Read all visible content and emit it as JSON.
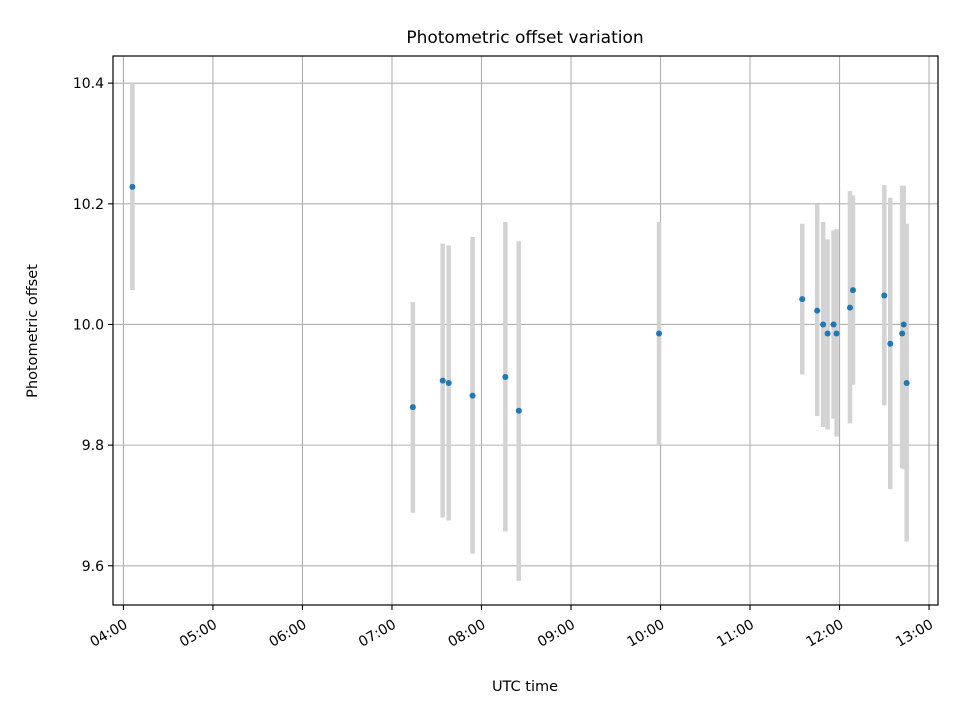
{
  "chart_data": {
    "type": "scatter",
    "title": "Photometric offset variation",
    "xlabel": "UTC time",
    "ylabel": "Photometric offset",
    "x_ticks": [
      "04:00",
      "05:00",
      "06:00",
      "07:00",
      "08:00",
      "09:00",
      "10:00",
      "11:00",
      "12:00",
      "13:00"
    ],
    "y_ticks": [
      "9.6",
      "9.8",
      "10.0",
      "10.2",
      "10.4"
    ],
    "xlim": [
      "03:53",
      "13:06"
    ],
    "ylim": [
      9.535,
      10.445
    ],
    "grid": true,
    "point_color": "#1f77b4",
    "errorbar_color": "#d3d3d3",
    "points": [
      {
        "t": "04:06",
        "y": 10.228,
        "ylow": 10.057,
        "yhigh": 10.4
      },
      {
        "t": "07:14",
        "y": 9.863,
        "ylow": 9.688,
        "yhigh": 10.037
      },
      {
        "t": "07:34",
        "y": 9.907,
        "ylow": 9.68,
        "yhigh": 10.134
      },
      {
        "t": "07:38",
        "y": 9.903,
        "ylow": 9.675,
        "yhigh": 10.131
      },
      {
        "t": "07:54",
        "y": 9.882,
        "ylow": 9.62,
        "yhigh": 10.145
      },
      {
        "t": "08:16",
        "y": 9.913,
        "ylow": 9.657,
        "yhigh": 10.17
      },
      {
        "t": "08:25",
        "y": 9.857,
        "ylow": 9.575,
        "yhigh": 10.138
      },
      {
        "t": "09:59",
        "y": 9.985,
        "ylow": 9.8,
        "yhigh": 10.17
      },
      {
        "t": "11:35",
        "y": 10.042,
        "ylow": 9.917,
        "yhigh": 10.167
      },
      {
        "t": "11:45",
        "y": 10.023,
        "ylow": 9.848,
        "yhigh": 10.199
      },
      {
        "t": "11:49",
        "y": 10.0,
        "ylow": 9.83,
        "yhigh": 10.17
      },
      {
        "t": "11:52",
        "y": 9.985,
        "ylow": 9.826,
        "yhigh": 10.141
      },
      {
        "t": "11:56",
        "y": 10.0,
        "ylow": 9.844,
        "yhigh": 10.156
      },
      {
        "t": "11:58",
        "y": 9.985,
        "ylow": 9.814,
        "yhigh": 10.158
      },
      {
        "t": "12:07",
        "y": 10.028,
        "ylow": 9.836,
        "yhigh": 10.221
      },
      {
        "t": "12:09",
        "y": 10.057,
        "ylow": 9.9,
        "yhigh": 10.214
      },
      {
        "t": "12:30",
        "y": 10.048,
        "ylow": 9.866,
        "yhigh": 10.231
      },
      {
        "t": "12:34",
        "y": 9.968,
        "ylow": 9.727,
        "yhigh": 10.21
      },
      {
        "t": "12:42",
        "y": 9.985,
        "ylow": 9.762,
        "yhigh": 10.23
      },
      {
        "t": "12:43",
        "y": 10.0,
        "ylow": 9.76,
        "yhigh": 10.23
      },
      {
        "t": "12:45",
        "y": 9.903,
        "ylow": 9.64,
        "yhigh": 10.167
      }
    ]
  }
}
